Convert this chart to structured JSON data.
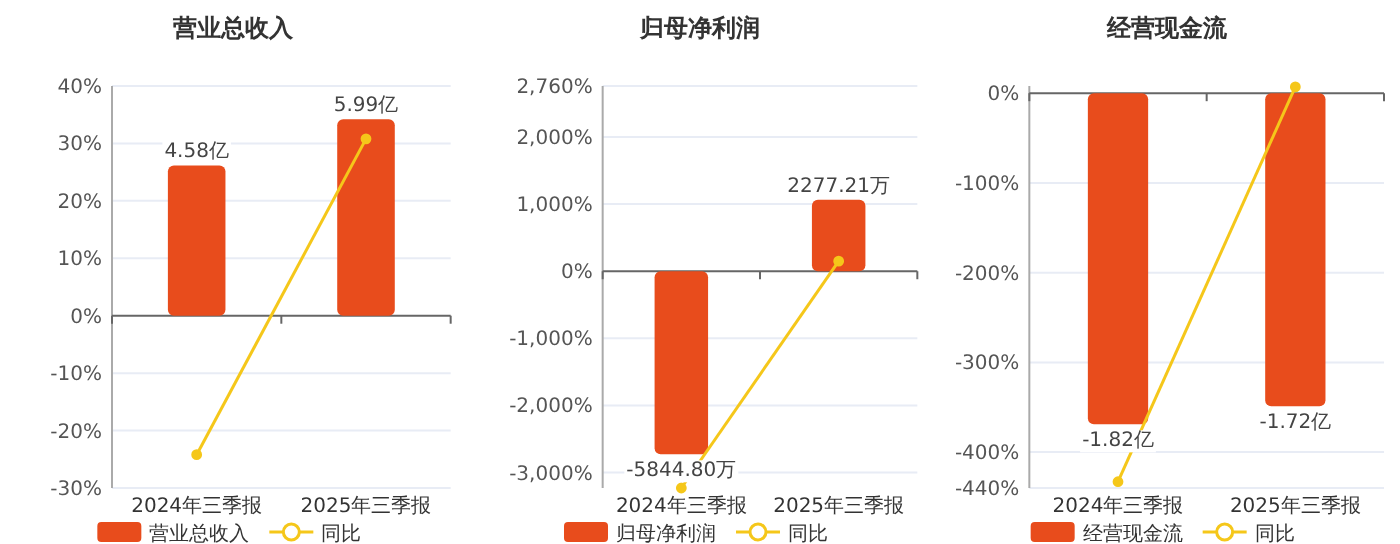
{
  "chart_data": [
    {
      "type": "bar",
      "title": "营业总收入",
      "categories": [
        "2024年三季报",
        "2025年三季报"
      ],
      "series": [
        {
          "name": "营业总收入",
          "type": "bar",
          "axis": "y2",
          "color": "#e84c1c",
          "values": [
            4.58,
            5.99
          ],
          "value_labels": [
            "4.58亿",
            "5.99亿"
          ]
        },
        {
          "name": "同比",
          "type": "line",
          "color": "#f5c71a",
          "values": [
            -24.2,
            30.8
          ]
        }
      ],
      "ylim": [
        -30,
        40
      ],
      "yticks": [
        {
          "value": -30,
          "label": "-30%"
        },
        {
          "value": -20,
          "label": "-20%"
        },
        {
          "value": -10,
          "label": "-10%"
        },
        {
          "value": 0,
          "label": "0%"
        },
        {
          "value": 10,
          "label": "10%"
        },
        {
          "value": 20,
          "label": "20%"
        },
        {
          "value": 30,
          "label": "30%"
        },
        {
          "value": 40,
          "label": "40%"
        }
      ],
      "y2lim": [
        -5.25,
        7
      ],
      "grid": "y",
      "legend": "bottom",
      "marker": "circle"
    },
    {
      "type": "bar",
      "title": "归母净利润",
      "categories": [
        "2024年三季报",
        "2025年三季报"
      ],
      "series": [
        {
          "name": "归母净利润",
          "type": "bar",
          "axis": "y2",
          "color": "#e84c1c",
          "values": [
            -5844.8,
            2277.21
          ],
          "value_labels": [
            "-5844.80万",
            "2277.21万"
          ]
        },
        {
          "name": "同比",
          "type": "line",
          "color": "#f5c71a",
          "values": [
            -3230,
            150
          ]
        }
      ],
      "ylim": [
        -3230,
        2760
      ],
      "yticks": [
        {
          "value": -3000,
          "label": "-3,000%"
        },
        {
          "value": -2000,
          "label": "-2,000%"
        },
        {
          "value": -1000,
          "label": "-1,000%"
        },
        {
          "value": 0,
          "label": "0%"
        },
        {
          "value": 1000,
          "label": "1,000%"
        },
        {
          "value": 2000,
          "label": "2,000%"
        },
        {
          "value": 2760,
          "label": "2,760%"
        }
      ],
      "y2lim": [
        -6920,
        5910
      ],
      "grid": "y",
      "legend": "bottom",
      "marker": "circle"
    },
    {
      "type": "bar",
      "title": "经营现金流",
      "categories": [
        "2024年三季报",
        "2025年三季报"
      ],
      "series": [
        {
          "name": "经营现金流",
          "type": "bar",
          "axis": "y2",
          "color": "#e84c1c",
          "values": [
            -1.82,
            -1.72
          ],
          "value_labels": [
            "-1.82亿",
            "-1.72亿"
          ]
        },
        {
          "name": "同比",
          "type": "line",
          "color": "#f5c71a",
          "values": [
            -433,
            7
          ]
        }
      ],
      "ylim": [
        -440,
        8
      ],
      "yticks": [
        {
          "value": -440,
          "label": "-440%"
        },
        {
          "value": -400,
          "label": "-400%"
        },
        {
          "value": -300,
          "label": "-300%"
        },
        {
          "value": -200,
          "label": "-200%"
        },
        {
          "value": -100,
          "label": "-100%"
        },
        {
          "value": 0,
          "label": "0%"
        }
      ],
      "y2lim": [
        -2.17,
        0.04
      ],
      "grid": "y",
      "legend": "bottom",
      "marker": "circle"
    }
  ]
}
